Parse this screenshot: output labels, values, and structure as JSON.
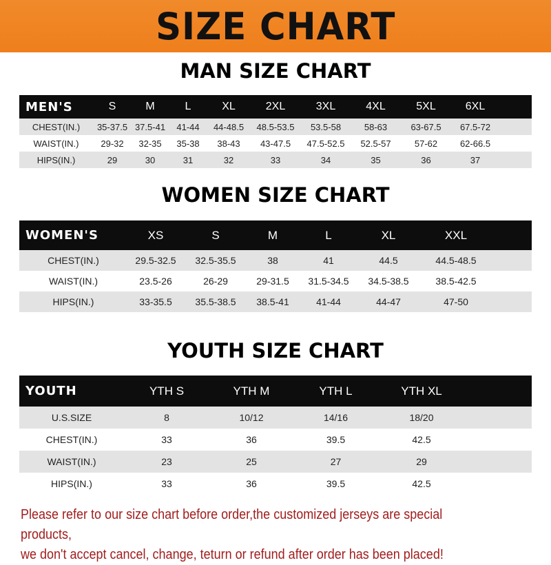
{
  "banner": "SIZE CHART",
  "men": {
    "title": "MAN SIZE CHART",
    "header": [
      "MEN'S",
      "S",
      "M",
      "L",
      "XL",
      "2XL",
      "3XL",
      "4XL",
      "5XL",
      "6XL"
    ],
    "rows": [
      [
        "CHEST(IN.)",
        "35-37.5",
        "37.5-41",
        "41-44",
        "44-48.5",
        "48.5-53.5",
        "53.5-58",
        "58-63",
        "63-67.5",
        "67.5-72"
      ],
      [
        "WAIST(IN.)",
        "29-32",
        "32-35",
        "35-38",
        "38-43",
        "43-47.5",
        "47.5-52.5",
        "52.5-57",
        "57-62",
        "62-66.5"
      ],
      [
        "HIPS(IN.)",
        "29",
        "30",
        "31",
        "32",
        "33",
        "34",
        "35",
        "36",
        "37"
      ]
    ]
  },
  "women": {
    "title": "WOMEN SIZE CHART",
    "header": [
      "WOMEN'S",
      "XS",
      "S",
      "M",
      "L",
      "XL",
      "XXL"
    ],
    "rows": [
      [
        "CHEST(IN.)",
        "29.5-32.5",
        "32.5-35.5",
        "38",
        "41",
        "44.5",
        "44.5-48.5"
      ],
      [
        "WAIST(IN.)",
        "23.5-26",
        "26-29",
        "29-31.5",
        "31.5-34.5",
        "34.5-38.5",
        "38.5-42.5"
      ],
      [
        "HIPS(IN.)",
        "33-35.5",
        "35.5-38.5",
        "38.5-41",
        "41-44",
        "44-47",
        "47-50"
      ]
    ]
  },
  "youth": {
    "title": "YOUTH SIZE CHART",
    "header": [
      "YOUTH",
      "YTH S",
      "YTH M",
      "YTH L",
      "YTH XL"
    ],
    "rows": [
      [
        "U.S.SIZE",
        "8",
        "10/12",
        "14/16",
        "18/20"
      ],
      [
        "CHEST(IN.)",
        "33",
        "36",
        "39.5",
        "42.5"
      ],
      [
        "WAIST(IN.)",
        "23",
        "25",
        "27",
        "29"
      ],
      [
        "HIPS(IN.)",
        "33",
        "36",
        "39.5",
        "42.5"
      ]
    ]
  },
  "note": [
    "Please refer to our size chart before order,the customized jerseys are special products,",
    "we don't accept cancel, change, teturn or refund after order has been placed!"
  ],
  "colors": {
    "banner": "#ef7f1c",
    "header_row": "#0d0d0d",
    "stripe": "#e3e3e3",
    "note": "#a11d1d"
  }
}
